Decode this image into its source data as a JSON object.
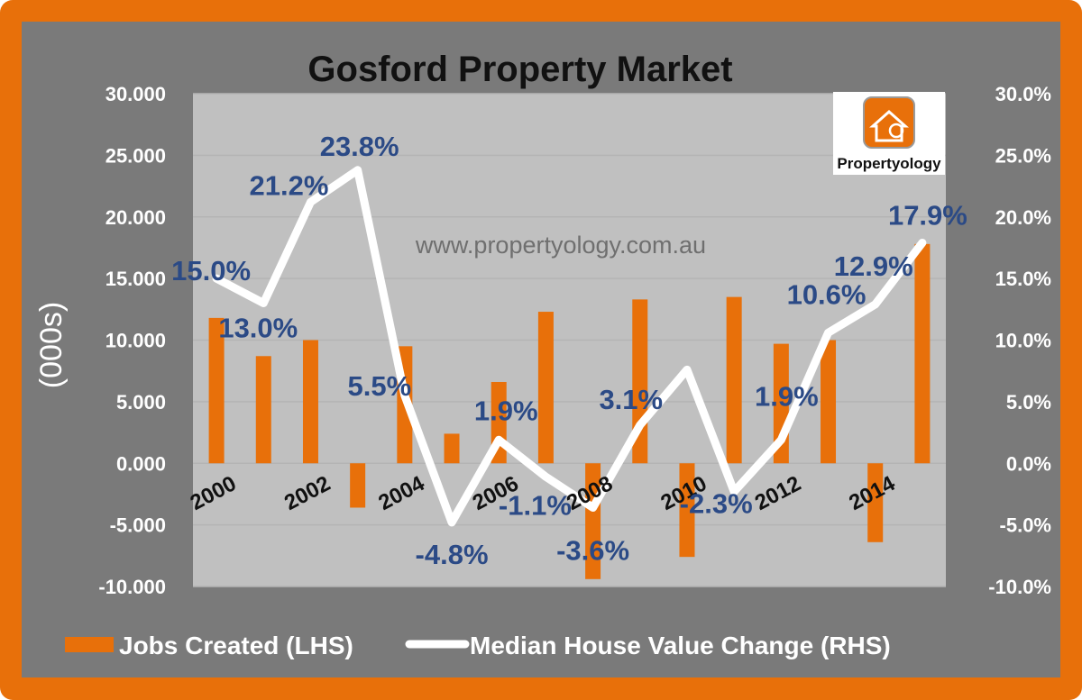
{
  "chart_data": {
    "type": "bar",
    "title": "Gosford Property Market",
    "ylabel": "(000s)",
    "ylim": [
      -10,
      30
    ],
    "y2lim": [
      -10,
      30
    ],
    "y_ticks": [
      "30.000",
      "25.000",
      "20.000",
      "15.000",
      "10.000",
      "5.000",
      "0.000",
      "-5.000",
      "-10.000"
    ],
    "y2_ticks": [
      "30.0%",
      "25.0%",
      "20.0%",
      "15.0%",
      "10.0%",
      "5.0%",
      "0.0%",
      "-5.0%",
      "-10.0%"
    ],
    "x": [
      2000,
      2001,
      2002,
      2003,
      2004,
      2005,
      2006,
      2007,
      2008,
      2009,
      2010,
      2011,
      2012,
      2013,
      2014,
      2015
    ],
    "x_tick_labels": [
      "2000",
      "2002",
      "2004",
      "2006",
      "2008",
      "2010",
      "2012",
      "2014"
    ],
    "series": [
      {
        "name": "Jobs Created (LHS)",
        "type": "bar",
        "axis": "left",
        "color": "#e8700a",
        "values": [
          11.8,
          8.7,
          10.0,
          -3.6,
          9.5,
          2.4,
          6.6,
          12.3,
          -9.4,
          13.3,
          -7.6,
          13.5,
          9.7,
          10.0,
          -6.4,
          17.8
        ]
      },
      {
        "name": "Median House Value Change (RHS)",
        "type": "line",
        "axis": "right",
        "color": "#ffffff",
        "values": [
          15.0,
          13.0,
          21.2,
          23.8,
          5.5,
          -4.8,
          1.9,
          -1.1,
          -3.6,
          3.1,
          7.6,
          -2.3,
          1.9,
          10.6,
          12.9,
          17.9
        ],
        "labels": [
          "15.0%",
          "13.0%",
          "21.2%",
          "23.8%",
          "5.5%",
          "-4.8%",
          "1.9%",
          "-1.1%",
          "-3.6%",
          "3.1%",
          "",
          "-2.3%",
          "1.9%",
          "10.6%",
          "12.9%",
          "17.9%"
        ]
      }
    ],
    "annotations": [
      "www.propertyology.com.au"
    ],
    "logo_text": "Propertyology",
    "grid": true,
    "legend": "bottom",
    "colors": {
      "frame": "#e8700a",
      "panel": "#7a7a7a",
      "plot_bg": "#c0c0c0",
      "label": "#2b4a86"
    }
  }
}
